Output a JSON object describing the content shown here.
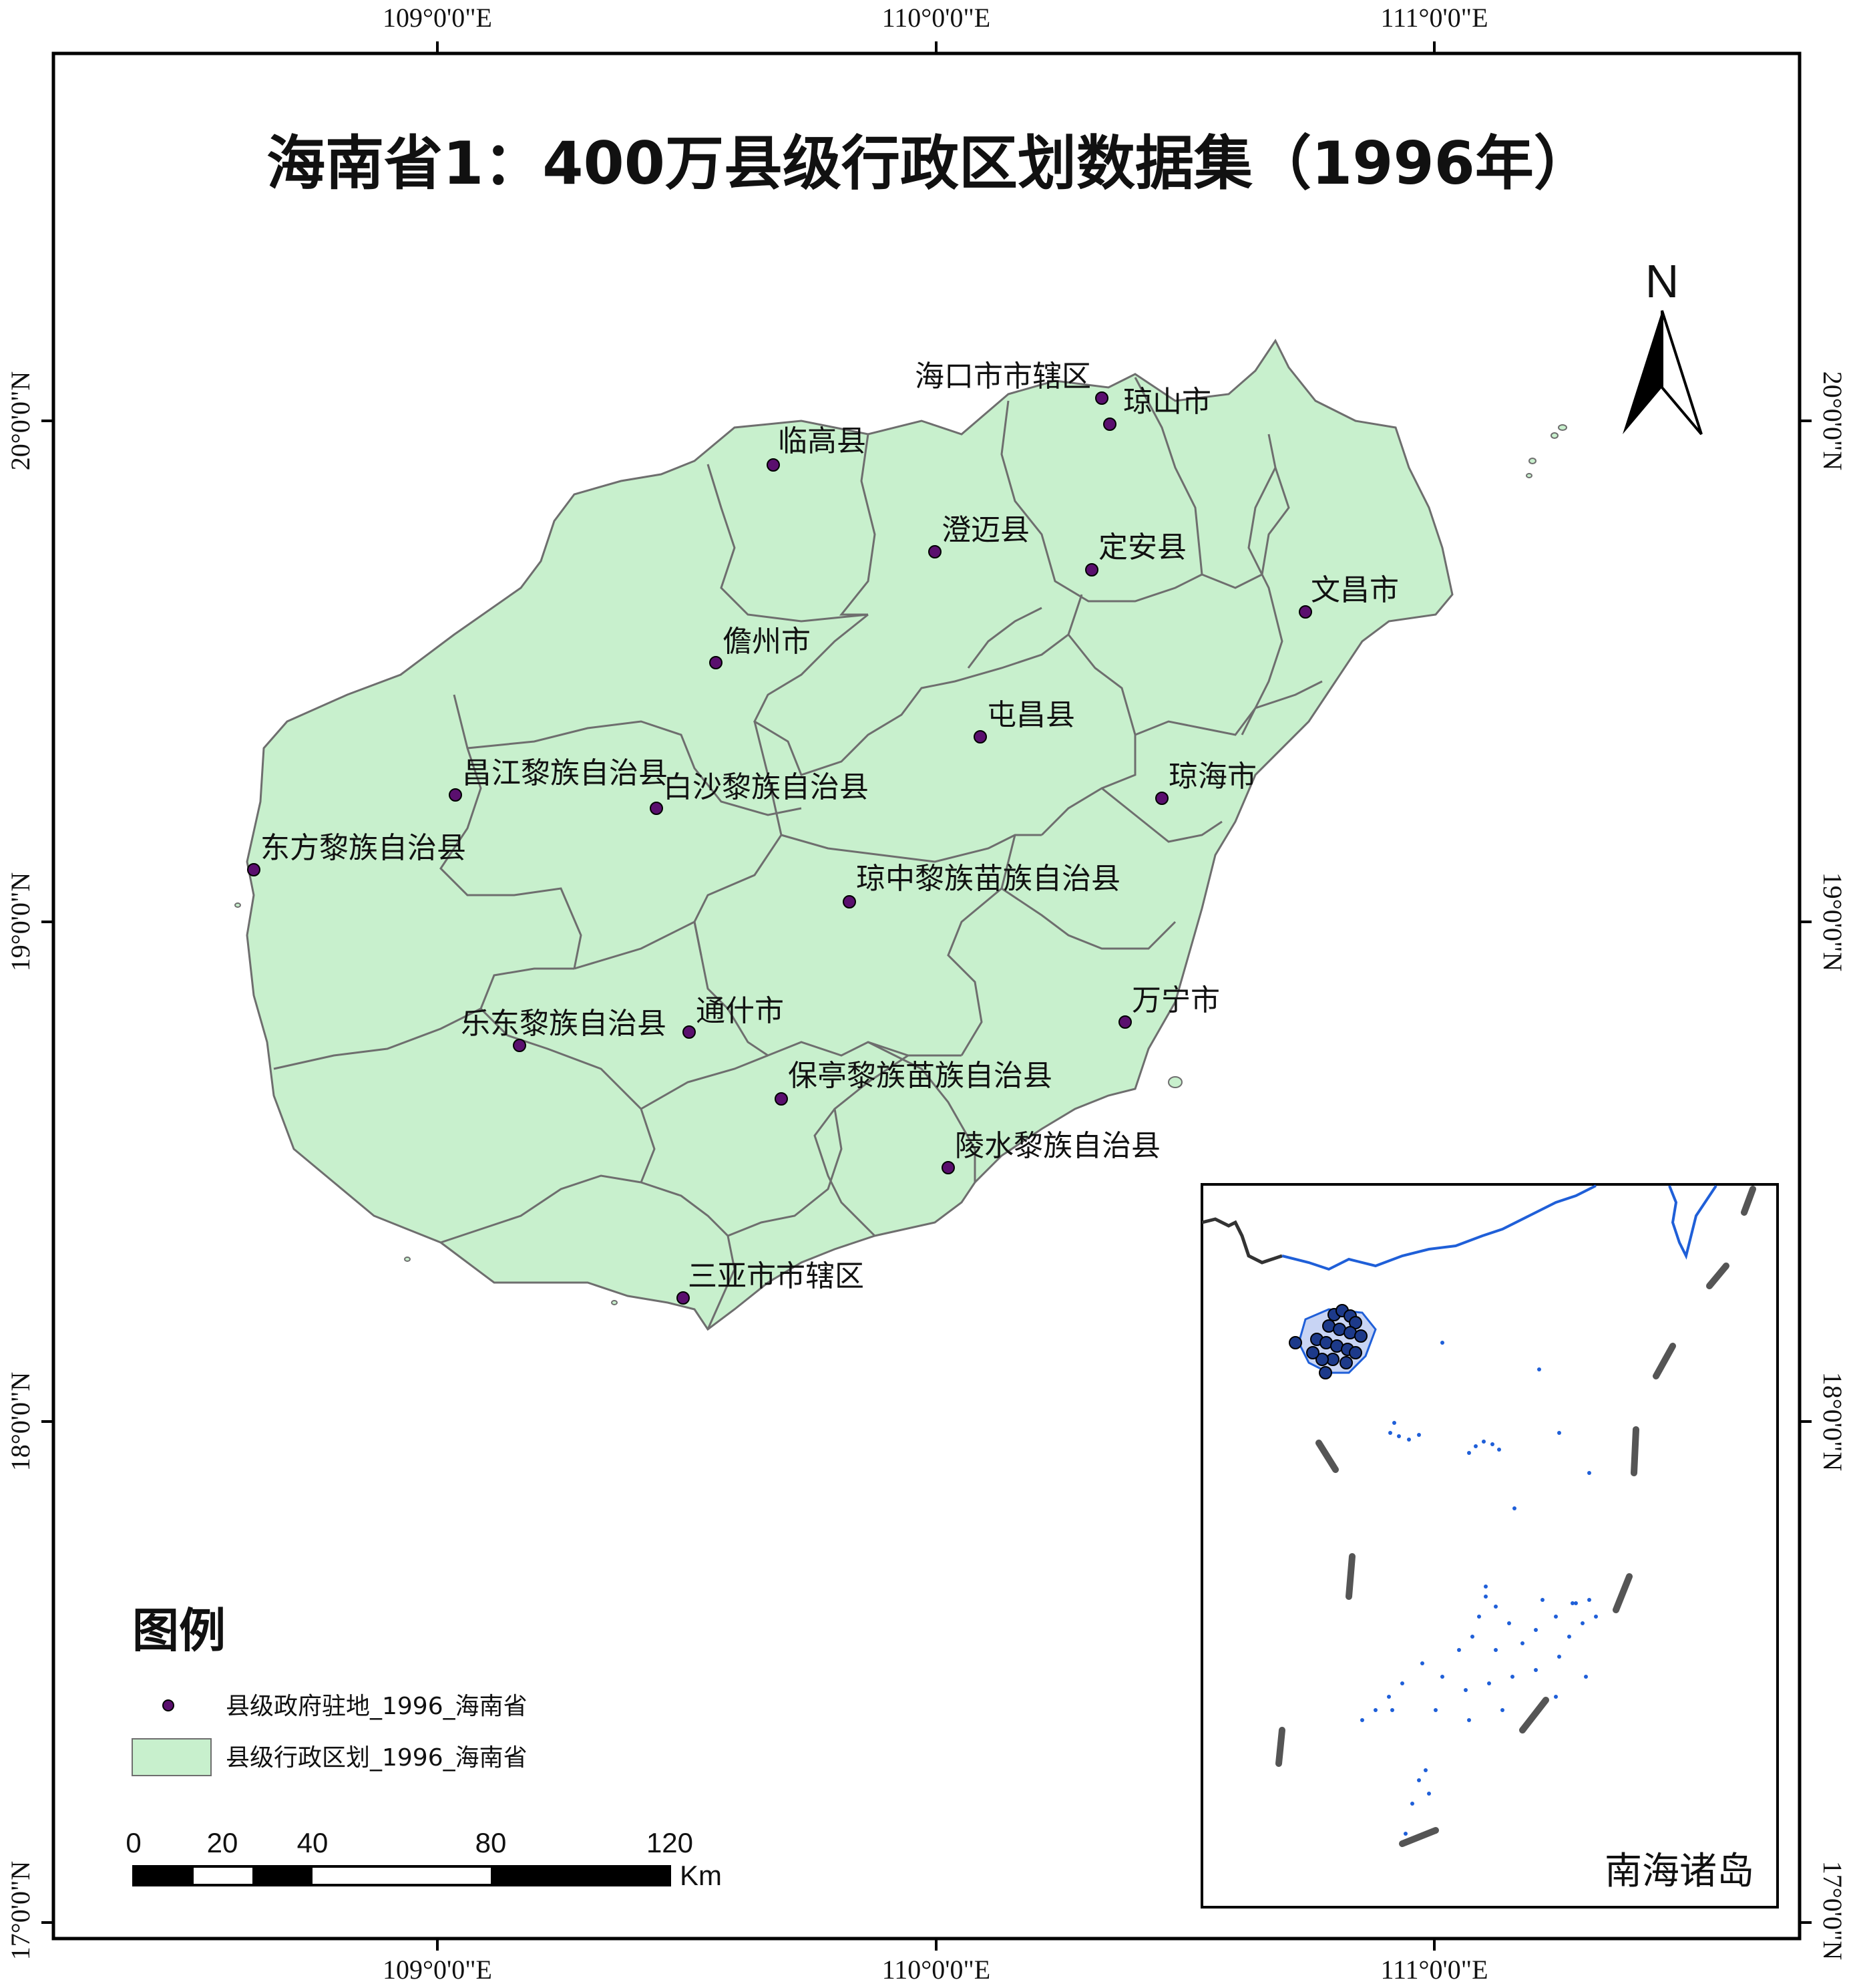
{
  "title": "海南省1：400万县级行政区划数据集（1996年）",
  "graticule": {
    "lon_labels": [
      "109°0'0\"E",
      "110°0'0\"E",
      "111°0'0\"E"
    ],
    "lat_labels": [
      "20°0'0\"N",
      "19°0'0\"N",
      "18°0'0\"N",
      "17°0'0\"N"
    ]
  },
  "north_arrow": {
    "label": "N"
  },
  "colors": {
    "land_fill": "#c8f0cd",
    "boundary": "#6e6e6e",
    "point_fill": "#5a0f6e",
    "inset_coast": "#1f5fd8",
    "inset_point": "#1d3a8a"
  },
  "places": [
    {
      "name": "海口市市辖区"
    },
    {
      "name": "琼山市"
    },
    {
      "name": "临高县"
    },
    {
      "name": "澄迈县"
    },
    {
      "name": "定安县"
    },
    {
      "name": "文昌市"
    },
    {
      "name": "儋州市"
    },
    {
      "name": "屯昌县"
    },
    {
      "name": "昌江黎族自治县"
    },
    {
      "name": "白沙黎族自治县"
    },
    {
      "name": "琼海市"
    },
    {
      "name": "东方黎族自治县"
    },
    {
      "name": "琼中黎族苗族自治县"
    },
    {
      "name": "万宁市"
    },
    {
      "name": "乐东黎族自治县"
    },
    {
      "name": "通什市"
    },
    {
      "name": "保亭黎族苗族自治县"
    },
    {
      "name": "陵水黎族自治县"
    },
    {
      "name": "三亚市市辖区"
    }
  ],
  "legend": {
    "title": "图例",
    "items": [
      {
        "label": "县级政府驻地_1996_海南省",
        "icon": "purple-dot"
      },
      {
        "label": "县级行政区划_1996_海南省",
        "icon": "green-rectangle"
      }
    ]
  },
  "scale_bar": {
    "ticks": [
      "0",
      "20",
      "40",
      "80",
      "120"
    ],
    "unit": "Km"
  },
  "inset": {
    "label": "南海诸岛"
  }
}
